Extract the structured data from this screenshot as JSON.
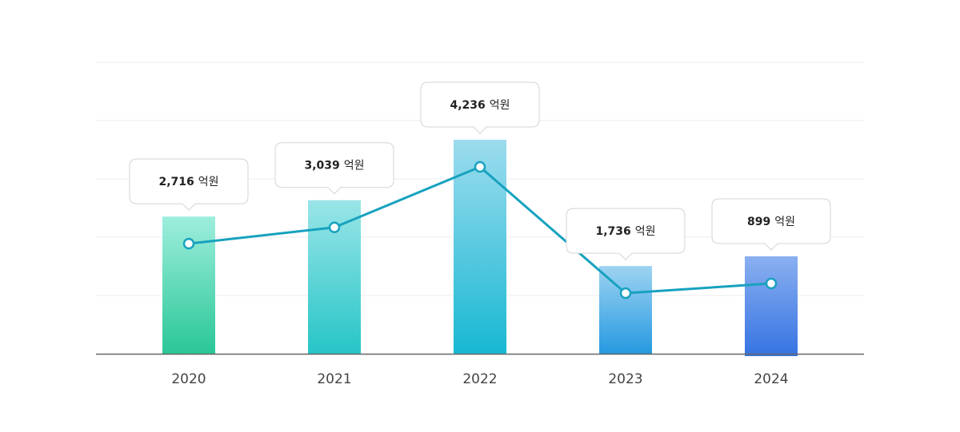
{
  "chart_data": {
    "type": "bar",
    "categories": [
      "2020",
      "2021",
      "2022",
      "2023",
      "2024"
    ],
    "values": [
      2716,
      3039,
      4236,
      1736,
      899
    ],
    "value_labels": [
      "2,716",
      "3,039",
      "4,236",
      "1,736",
      "899"
    ],
    "unit": "억원",
    "line_overlay": true,
    "grid": true,
    "legend": "none",
    "colors": {
      "line": "#17a2bf",
      "axis": "#666666",
      "grid": "#ececec",
      "bar_gradients": [
        [
          "#9eeedd",
          "#2ac797"
        ],
        [
          "#9ae5e8",
          "#27c5c7"
        ],
        [
          "#9ddcee",
          "#18b8d3"
        ],
        [
          "#9dd3f2",
          "#2699e0"
        ],
        [
          "#8ab0f0",
          "#3673e2"
        ]
      ]
    }
  }
}
